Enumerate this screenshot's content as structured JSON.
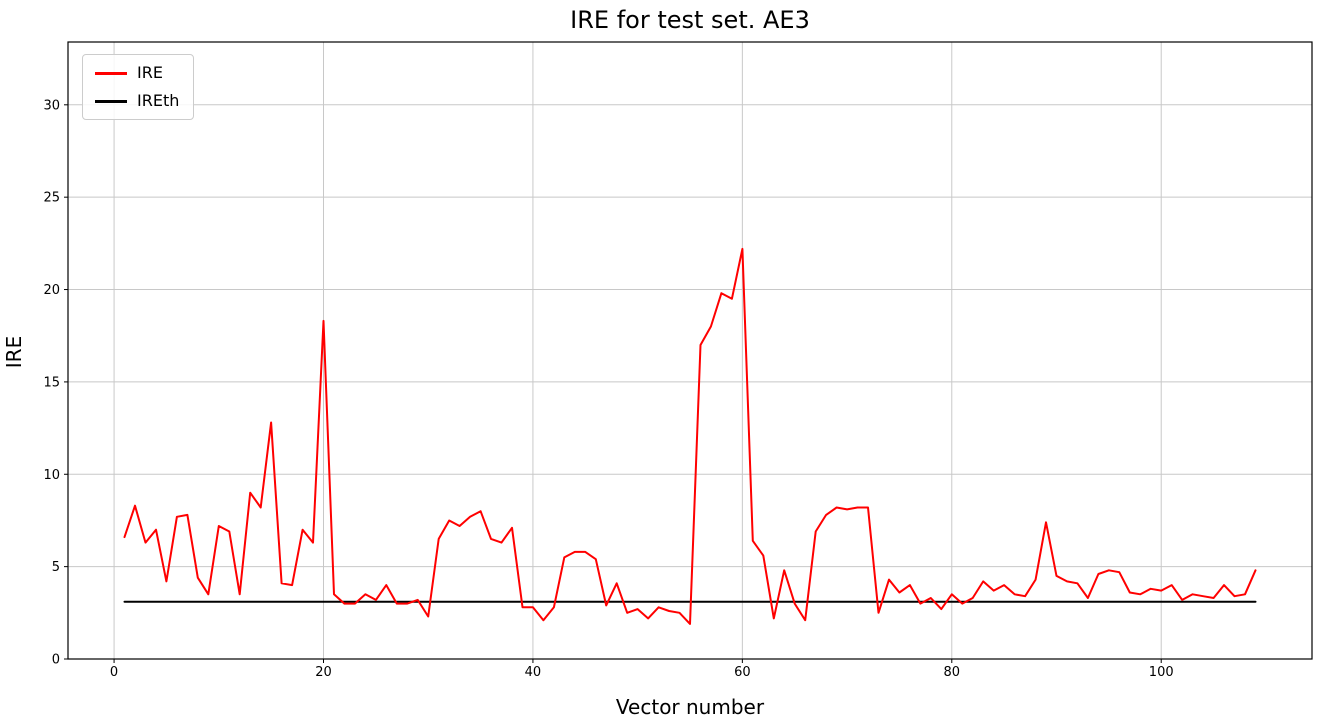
{
  "figure": {
    "title": "IRE for test set. AE3",
    "xlabel": "Vector number",
    "ylabel": "IRE"
  },
  "chart_data": {
    "type": "line",
    "title": "IRE for test set. AE3",
    "xlabel": "Vector number",
    "ylabel": "IRE",
    "xlim": [
      -4.4,
      114.4
    ],
    "ylim": [
      0,
      33.4
    ],
    "xticks": [
      0,
      20,
      40,
      60,
      80,
      100
    ],
    "yticks": [
      0,
      5,
      10,
      15,
      20,
      25,
      30
    ],
    "grid": true,
    "legend_position": "upper-left",
    "x_start": 1,
    "series": [
      {
        "name": "IRE",
        "color": "#ff0000",
        "linewidth": 2,
        "values": [
          6.6,
          8.3,
          6.3,
          7.0,
          4.2,
          7.7,
          7.8,
          4.4,
          3.5,
          7.2,
          6.9,
          3.5,
          9.0,
          8.2,
          12.8,
          4.1,
          4.0,
          7.0,
          6.3,
          18.3,
          3.5,
          3.0,
          3.0,
          3.5,
          3.2,
          4.0,
          3.0,
          3.0,
          3.2,
          2.3,
          6.5,
          7.5,
          7.2,
          7.7,
          8.0,
          6.5,
          6.3,
          7.1,
          2.8,
          2.8,
          2.1,
          2.8,
          5.5,
          5.8,
          5.8,
          5.4,
          2.9,
          4.1,
          2.5,
          2.7,
          2.2,
          2.8,
          2.6,
          2.5,
          1.9,
          17.0,
          18.0,
          19.8,
          19.5,
          22.2,
          6.4,
          5.6,
          2.2,
          4.8,
          3.0,
          2.1,
          6.9,
          7.8,
          8.2,
          8.1,
          8.2,
          8.2,
          2.5,
          4.3,
          3.6,
          4.0,
          3.0,
          3.3,
          2.7,
          3.5,
          3.0,
          3.3,
          4.2,
          3.7,
          4.0,
          3.5,
          3.4,
          4.3,
          7.4,
          4.5,
          4.2,
          4.1,
          3.3,
          4.6,
          4.8,
          4.7,
          3.6,
          3.5,
          3.8,
          3.7,
          4.0,
          3.2,
          3.5,
          3.4,
          3.3,
          4.0,
          3.4,
          3.5,
          4.8
        ]
      },
      {
        "name": "IREth",
        "color": "#000000",
        "linewidth": 2,
        "constant": 3.1
      }
    ]
  }
}
